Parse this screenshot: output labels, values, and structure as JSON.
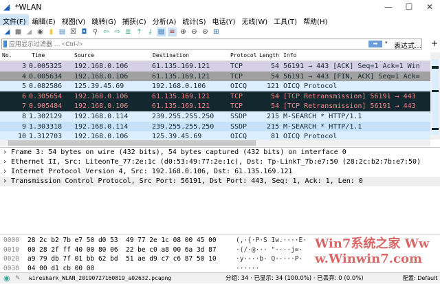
{
  "window": {
    "title": "*WLAN",
    "minimize": "—",
    "maximize": "☐",
    "close": "✕"
  },
  "menu": [
    "文件(F)",
    "编辑(E)",
    "视图(V)",
    "跳转(G)",
    "捕获(C)",
    "分析(A)",
    "统计(S)",
    "电话(Y)",
    "无线(W)",
    "工具(T)",
    "帮助(H)"
  ],
  "toolbar": [
    "start-capture",
    "stop-capture",
    "restart-capture",
    "capture-options",
    "open-file",
    "save-file",
    "close-file",
    "reload-file",
    "find-packet",
    "go-back",
    "go-forward",
    "go-to-packet",
    "first-packet",
    "last-packet",
    "auto-scroll",
    "colorize",
    "zoom-in",
    "zoom-out",
    "normal-size",
    "resize-columns"
  ],
  "filter": {
    "placeholder": "应用显示过滤器 … <Ctrl-/>",
    "expression_label": "表达式…",
    "add_label": "+"
  },
  "columns": [
    "No.",
    "Time",
    "Source",
    "Destination",
    "Protocol",
    "Length",
    "Info"
  ],
  "packets": [
    {
      "no": "3",
      "time": "0.005325",
      "src": "192.168.0.106",
      "dst": "61.135.169.121",
      "proto": "TCP",
      "len": "54",
      "info": "56191 → 443 [ACK] Seq=1 Ack=1 Win",
      "bg": "#d6d0e4",
      "fg": "#12272e"
    },
    {
      "no": "4",
      "time": "0.005634",
      "src": "192.168.0.106",
      "dst": "61.135.169.121",
      "proto": "TCP",
      "len": "54",
      "info": "56191 → 443 [FIN, ACK] Seq=1 Ack=",
      "bg": "#a0a0a0",
      "fg": "#12272e"
    },
    {
      "no": "5",
      "time": "0.082586",
      "src": "125.39.45.69",
      "dst": "192.168.0.106",
      "proto": "OICQ",
      "len": "121",
      "info": "OICQ Protocol",
      "bg": "#daeeff",
      "fg": "#12272e"
    },
    {
      "no": "6",
      "time": "0.305654",
      "src": "192.168.0.106",
      "dst": "61.135.169.121",
      "proto": "TCP",
      "len": "54",
      "info": "[TCP Retransmission] 56191 → 443",
      "bg": "#12272e",
      "fg": "#f78787"
    },
    {
      "no": "7",
      "time": "0.905484",
      "src": "192.168.0.106",
      "dst": "61.135.169.121",
      "proto": "TCP",
      "len": "54",
      "info": "[TCP Retransmission] 56191 → 443",
      "bg": "#12272e",
      "fg": "#f78787"
    },
    {
      "no": "8",
      "time": "1.302129",
      "src": "192.168.0.114",
      "dst": "239.255.255.250",
      "proto": "SSDP",
      "len": "215",
      "info": "M-SEARCH * HTTP/1.1",
      "bg": "#daeeff",
      "fg": "#12272e"
    },
    {
      "no": "9",
      "time": "1.303318",
      "src": "192.168.0.114",
      "dst": "239.255.255.250",
      "proto": "SSDP",
      "len": "215",
      "info": "M-SEARCH * HTTP/1.1",
      "bg": "#c6e2fa",
      "fg": "#12272e"
    },
    {
      "no": "10",
      "time": "1.312703",
      "src": "192.168.0.106",
      "dst": "125.39.45.69",
      "proto": "OICQ",
      "len": "81",
      "info": "OICQ Protocol",
      "bg": "#daeeff",
      "fg": "#12272e"
    }
  ],
  "details": [
    "Frame 3: 54 bytes on wire (432 bits), 54 bytes captured (432 bits) on interface 0",
    "Ethernet II, Src: LiteonTe_77:2e:1c (d0:53:49:77:2e:1c), Dst: Tp-LinkT_7b:e7:50 (28:2c:b2:7b:e7:50)",
    "Internet Protocol Version 4, Src: 192.168.0.106, Dst: 61.135.169.121",
    "Transmission Control Protocol, Src Port: 56191, Dst Port: 443, Seq: 1, Ack: 1, Len: 0"
  ],
  "hex": [
    {
      "off": "0000",
      "bytes": "28 2c b2 7b e7 50 d0 53  49 77 2e 1c 08 00 45 00",
      "ascii": "(,·{·P·S Iw.····E·"
    },
    {
      "off": "0010",
      "bytes": "00 28 2f ff 40 00 80 06  22 be c0 a8 00 6a 3d 87",
      "ascii": "·(/·@··· \"····j=·"
    },
    {
      "off": "0020",
      "bytes": "a9 79 db 7f 01 bb 62 bd  51 ae d9 c7 c6 87 50 10",
      "ascii": "·y····b· Q·····P·"
    },
    {
      "off": "0030",
      "bytes": "04 00 d1 cb 00 00",
      "ascii": "······"
    }
  ],
  "status": {
    "file": "wireshark_WLAN_20190727160819_a02632.pcapng",
    "packets": "分组: 34 · 已显示: 34 (100.0%) · 已丢弃: 0 (0.0%)",
    "profile": "配置: Default"
  },
  "watermark": "Win7系统之家 Www.Winwin7.com"
}
